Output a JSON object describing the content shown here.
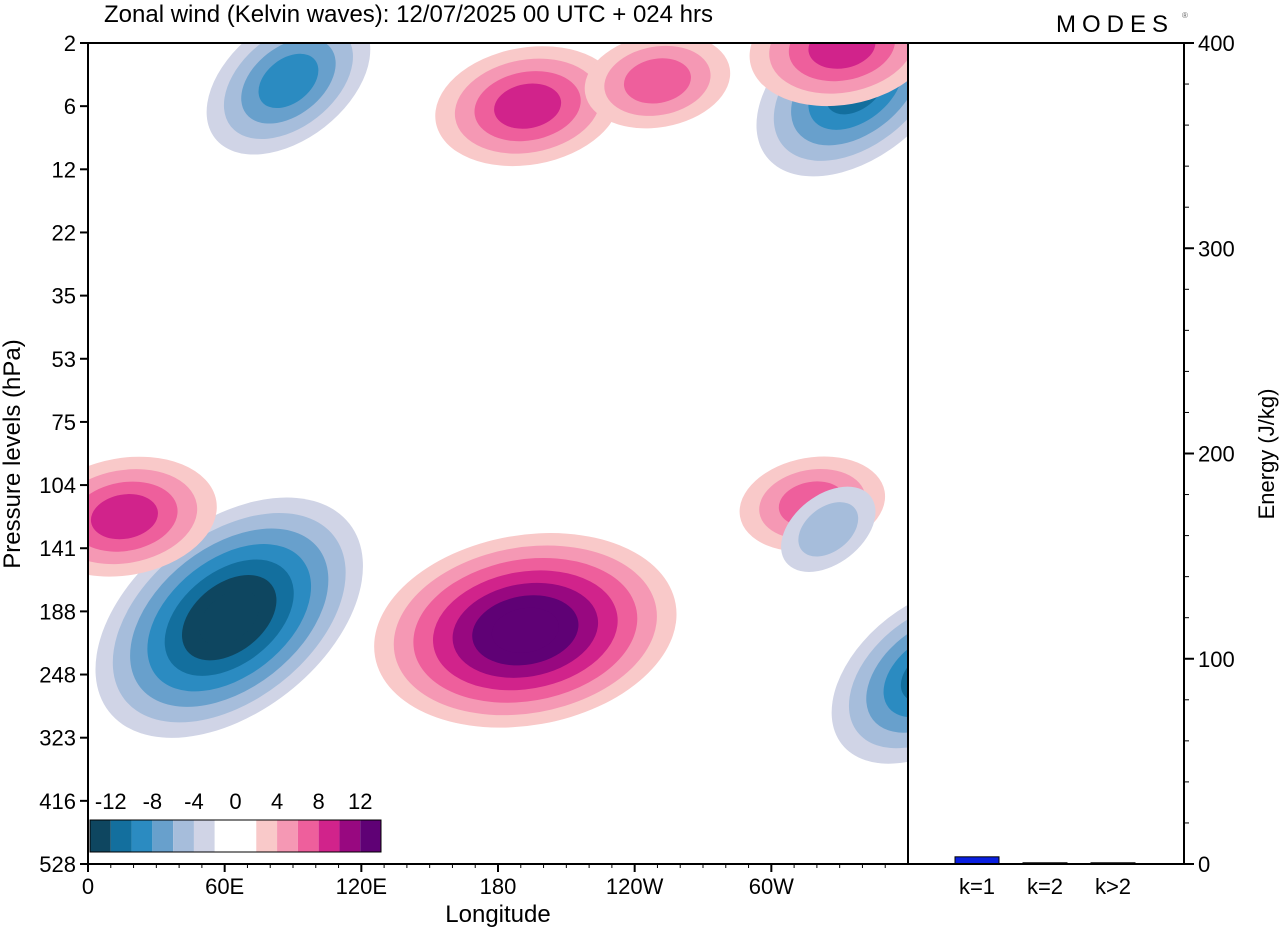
{
  "brand": "MODES",
  "colors": {
    "neg": [
      "#0e4660",
      "#136f9e",
      "#2b8bc1",
      "#68a0cc",
      "#a6bddb",
      "#d0d4e6"
    ],
    "pos": [
      "#f9c9c9",
      "#f598b4",
      "#ee5f9c",
      "#d1238b",
      "#980880",
      "#5f0175"
    ],
    "zero": "#ffffff",
    "bar_k1": "#0a1fe0",
    "frame": "#000000"
  },
  "chart_data": [
    {
      "type": "heatmap",
      "title": "Zonal wind (Kelvin waves):  12/07/2025  00 UTC  + 024 hrs",
      "xlabel": "Longitude",
      "ylabel": "Pressure levels (hPa)",
      "x_ticks": [
        "0",
        "60E",
        "120E",
        "180",
        "120W",
        "60W"
      ],
      "x_range": [
        0,
        360
      ],
      "y_ticks": [
        "2",
        "6",
        "12",
        "22",
        "35",
        "53",
        "75",
        "104",
        "141",
        "188",
        "248",
        "323",
        "416",
        "528"
      ],
      "colorbar": {
        "labels": [
          "-12",
          "-8",
          "-4",
          "0",
          "4",
          "8",
          "12"
        ],
        "levels": [
          -14,
          -12,
          -10,
          -8,
          -6,
          -4,
          -2,
          2,
          4,
          6,
          8,
          10,
          12,
          14
        ]
      },
      "features": [
        {
          "lon": 62,
          "level_index": 9.1,
          "value": -14,
          "shape": "ellipse"
        },
        {
          "lon": 192,
          "level_index": 9.3,
          "value": 14,
          "shape": "ellipse"
        },
        {
          "lon": 370,
          "level_index": 10.0,
          "value": -9,
          "shape": "ellipse"
        },
        {
          "lon": 16,
          "level_index": 7.5,
          "value": 7,
          "shape": "ellipse"
        },
        {
          "lon": 318,
          "level_index": 7.3,
          "value": 6,
          "shape": "ellipse"
        },
        {
          "lon": 325,
          "level_index": 7.7,
          "value": -4,
          "shape": "ellipse"
        },
        {
          "lon": 88,
          "level_index": 0.6,
          "value": -8,
          "shape": "ellipse"
        },
        {
          "lon": 337,
          "level_index": 0.7,
          "value": -9,
          "shape": "ellipse"
        },
        {
          "lon": 193,
          "level_index": 1.0,
          "value": 7,
          "shape": "ellipse"
        },
        {
          "lon": 250,
          "level_index": 0.6,
          "value": 6,
          "shape": "ellipse"
        },
        {
          "lon": 331,
          "level_index": 0.05,
          "value": 8,
          "shape": "ellipse"
        }
      ]
    },
    {
      "type": "bar",
      "ylabel": "Energy (J/kg)",
      "categories": [
        "k=1",
        "k=2",
        "k>2"
      ],
      "values": [
        3.5,
        0.6,
        0.6
      ],
      "ylim": [
        0,
        400
      ],
      "y_ticks": [
        "0",
        "100",
        "200",
        "300",
        "400"
      ]
    }
  ]
}
